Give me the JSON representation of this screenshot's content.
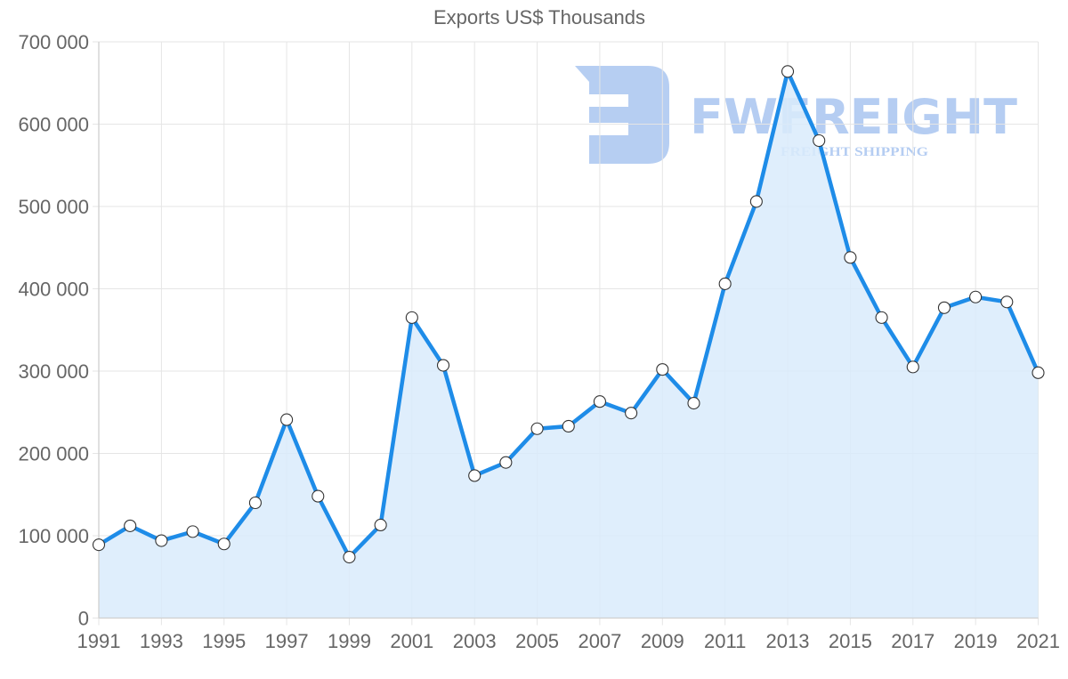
{
  "chart_data": {
    "type": "area",
    "title": "Exports US$ Thousands",
    "xlabel": "",
    "ylabel": "",
    "ylim": [
      0,
      700000
    ],
    "yticks": [
      0,
      100000,
      200000,
      300000,
      400000,
      500000,
      600000,
      700000
    ],
    "ytick_labels": [
      "0",
      "100 000",
      "200 000",
      "300 000",
      "400 000",
      "500 000",
      "600 000",
      "700 000"
    ],
    "xtick_labels": [
      "1991",
      "1993",
      "1995",
      "1997",
      "1999",
      "2001",
      "2003",
      "2005",
      "2007",
      "2009",
      "2011",
      "2013",
      "2015",
      "2017",
      "2019",
      "2021"
    ],
    "grid": true,
    "legend": null,
    "x": [
      1991,
      1992,
      1993,
      1994,
      1995,
      1996,
      1997,
      1998,
      1999,
      2000,
      2001,
      2002,
      2003,
      2004,
      2005,
      2006,
      2007,
      2008,
      2009,
      2010,
      2011,
      2012,
      2013,
      2014,
      2015,
      2016,
      2017,
      2018,
      2019,
      2020,
      2021
    ],
    "series": [
      {
        "name": "Exports US$ Thousands",
        "values": [
          89000,
          112000,
          94000,
          105000,
          90000,
          140000,
          241000,
          148000,
          74000,
          113000,
          365000,
          307000,
          173000,
          189000,
          230000,
          233000,
          263000,
          249000,
          302000,
          261000,
          406000,
          506000,
          664000,
          580000,
          438000,
          365000,
          305000,
          377000,
          390000,
          384000,
          298000
        ],
        "line_color": "#1e8ce8",
        "fill_color": "#d9ebfc"
      }
    ]
  },
  "watermark": {
    "brand": "FWFREIGHT",
    "tagline": "FREIGHT SHIPPING",
    "color": "#a9c5f0"
  }
}
